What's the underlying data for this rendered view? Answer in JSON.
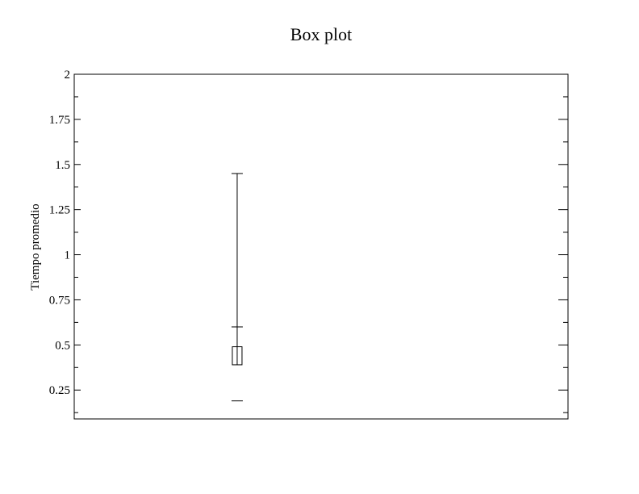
{
  "chart_data": {
    "type": "box",
    "title": "Box plot",
    "xlabel": "",
    "ylabel": "Tiempo promedio",
    "ylim": [
      0.09,
      2.0
    ],
    "yticks": [
      {
        "value": 0.25,
        "label": "0.25"
      },
      {
        "value": 0.5,
        "label": "0.5"
      },
      {
        "value": 0.75,
        "label": "0.75"
      },
      {
        "value": 1,
        "label": "1"
      },
      {
        "value": 1.25,
        "label": "1.25"
      },
      {
        "value": 1.5,
        "label": "1.5"
      },
      {
        "value": 1.75,
        "label": "1.75"
      },
      {
        "value": 2,
        "label": "2"
      }
    ],
    "yminor_ticks": [
      0.125,
      0.375,
      0.625,
      0.875,
      1.125,
      1.375,
      1.625,
      1.875
    ],
    "grid": false,
    "series": [
      {
        "x_fraction": 0.33,
        "whisker_low": 0.19,
        "q1": 0.39,
        "median": 0.42,
        "q3": 0.49,
        "upper_fence": 0.6,
        "whisker_high": 1.45
      }
    ]
  }
}
